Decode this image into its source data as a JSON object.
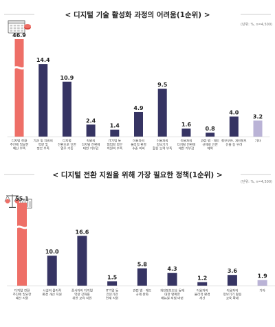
{
  "chart_data": [
    {
      "type": "bar",
      "title": "디지털 기술 활성화 과정의 어려움(1순위)",
      "unit_note": "(단위: %, n=4,500)",
      "categories": [
        [
          "디지털 전환",
          "추진에 필요한",
          "예산 부족"
        ],
        [
          "기관 및 지원의",
          "역량 및",
          "정보 부족"
        ],
        [
          "디지털",
          "전환으로 인한",
          "업무 가중"
        ],
        [
          "직원의",
          "디지털 전환에",
          "대한 거부감"
        ],
        [
          "IT기업 등",
          "협업할 외부",
          "지원의 부족"
        ],
        [
          "이용자의",
          "물리적 환경",
          "수준 미비"
        ],
        [
          "이용자의",
          "정보기기",
          "활용 능력 부족"
        ],
        [
          "이용자의",
          "디지털 전환에",
          "대한 거부감"
        ],
        [
          "관련 법 · 제도",
          "규제로 인한",
          "제약"
        ],
        [
          "정보보안, 개인정보",
          "유출 등 우려"
        ],
        [
          "기타"
        ]
      ],
      "values": [
        46.9,
        14.4,
        10.9,
        2.4,
        1.4,
        4.9,
        9.5,
        1.6,
        0.8,
        4.0,
        3.2
      ],
      "value_labels": [
        "46.9",
        "14.4",
        "10.9",
        "2.4",
        "1.4",
        "4.9",
        "9.5",
        "1.6",
        "0.8",
        "4.0",
        "3.2"
      ],
      "ylim": [
        0,
        17
      ],
      "broken_axis_index": 0,
      "colors": {
        "highlight": "#ee6f67",
        "main": "#363463",
        "other": "#bab3d6"
      }
    },
    {
      "type": "bar",
      "title": "디지털 전환 지원을 위해 가장 필요한 정책(1순위)",
      "unit_note": "(단위: %, n=4,500)",
      "categories": [
        [
          "디지털 전환",
          "추진에 필요한",
          "예산 지원"
        ],
        [
          "시설의 물리적",
          "환경 개선 지원"
        ],
        [
          "종사자의 디지털",
          "역량 강화를",
          "위한 교육 지원"
        ],
        [
          "IT기업 등",
          "전문기관",
          "연계 지원"
        ],
        [
          "관련 법 · 제도",
          "규제 완화"
        ],
        [
          "개인정보보호 등에",
          "대한 명확한",
          "매뉴얼 지침 마련"
        ],
        [
          "이용자의",
          "물리적 환경",
          "개선"
        ],
        [
          "이용자의",
          "정보기기 활용",
          "교육 확대"
        ],
        [
          "기타"
        ]
      ],
      "values": [
        55.1,
        10.0,
        16.6,
        1.5,
        5.8,
        4.3,
        1.2,
        3.6,
        1.9
      ],
      "value_labels": [
        "55.1",
        "10.0",
        "16.6",
        "1.5",
        "5.8",
        "4.3",
        "1.2",
        "3.6",
        "1.9"
      ],
      "ylim": [
        0,
        21
      ],
      "broken_axis_index": 0,
      "colors": {
        "highlight": "#ee6f67",
        "main": "#363463",
        "other": "#bab3d6"
      }
    }
  ]
}
